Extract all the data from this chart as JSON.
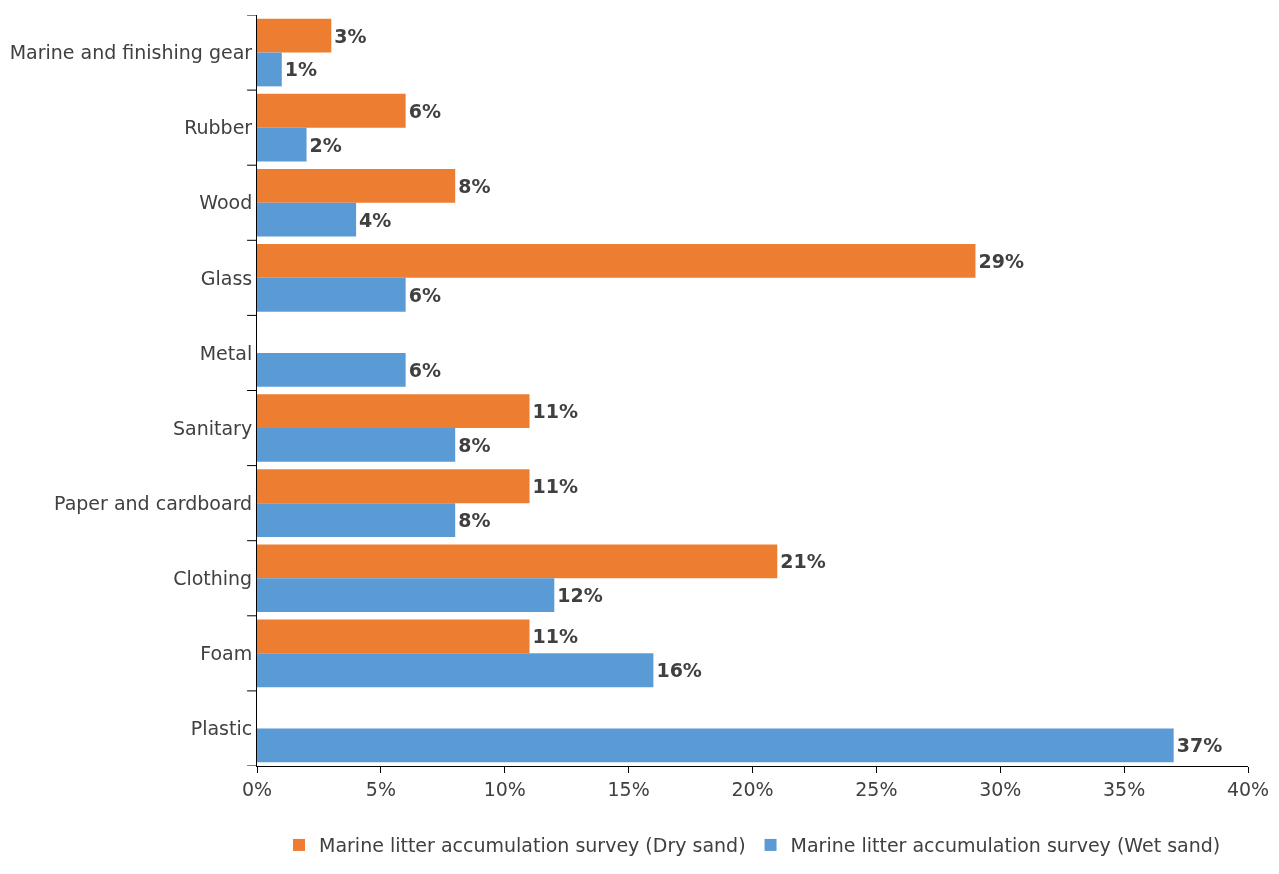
{
  "chart_data": {
    "type": "bar",
    "orientation": "horizontal",
    "categories": [
      "Marine and finishing gear",
      "Rubber",
      "Wood",
      "Glass",
      "Metal",
      "Sanitary",
      "Paper and cardboard",
      "Clothing",
      "Foam",
      "Plastic"
    ],
    "series": [
      {
        "name": "Marine litter accumulation survey (Dry sand)",
        "color": "#ed7d31",
        "values": [
          3,
          6,
          8,
          29,
          null,
          11,
          11,
          21,
          11,
          null
        ],
        "value_labels": [
          "3%",
          "6%",
          "8%",
          "29%",
          null,
          "11%",
          "11%",
          "21%",
          "11%",
          null
        ]
      },
      {
        "name": "Marine litter accumulation survey (Wet sand)",
        "color": "#5b9bd5",
        "values": [
          1,
          2,
          4,
          6,
          6,
          8,
          8,
          12,
          16,
          37
        ],
        "value_labels": [
          "1%",
          "2%",
          "4%",
          "6%",
          "6%",
          "8%",
          "8%",
          "12%",
          "16%",
          "37%"
        ]
      }
    ],
    "xlim": [
      0,
      40
    ],
    "xticks": [
      {
        "value": 0,
        "label": "0%"
      },
      {
        "value": 5,
        "label": "5%"
      },
      {
        "value": 10,
        "label": "10%"
      },
      {
        "value": 15,
        "label": "15%"
      },
      {
        "value": 20,
        "label": "20%"
      },
      {
        "value": 25,
        "label": "25%"
      },
      {
        "value": 30,
        "label": "30%"
      },
      {
        "value": 35,
        "label": "35%"
      },
      {
        "value": 40,
        "label": "40%"
      }
    ],
    "legend": "bottom"
  }
}
